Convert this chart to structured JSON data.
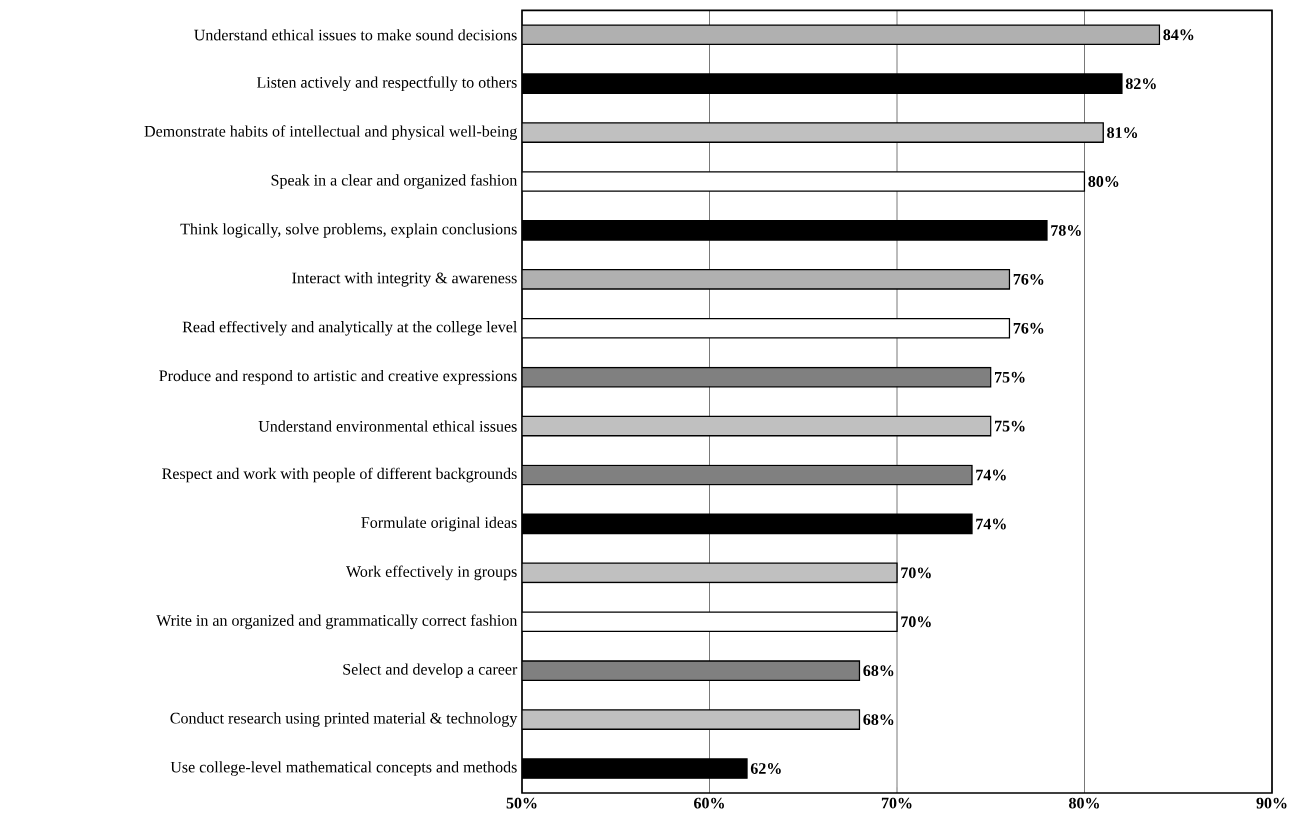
{
  "chart_data": {
    "type": "bar",
    "orientation": "horizontal",
    "categories": [
      "Understand ethical issues to make sound decisions",
      "Listen actively and respectfully to others",
      "Demonstrate habits of intellectual and physical well-being",
      "Speak in a clear and organized fashion",
      "Think logically, solve problems, explain conclusions",
      "Interact with integrity & awareness",
      "Read effectively and analytically at the college level",
      "Produce and respond to artistic and creative expressions",
      "Understand environmental ethical issues",
      "Respect and work with people of different backgrounds",
      "Formulate original ideas",
      "Work effectively in groups",
      "Write in an organized and grammatically correct fashion",
      "Select and develop a career",
      "Conduct research using printed material & technology",
      "Use college-level mathematical concepts and methods"
    ],
    "values": [
      84,
      82,
      81,
      80,
      78,
      76,
      76,
      75,
      75,
      74,
      74,
      70,
      70,
      68,
      68,
      62
    ],
    "value_labels": [
      "84%",
      "82%",
      "81%",
      "80%",
      "78%",
      "76%",
      "76%",
      "75%",
      "75%",
      "74%",
      "74%",
      "70%",
      "70%",
      "68%",
      "68%",
      "62%"
    ],
    "colors": [
      "#b0b0b0",
      "#000000",
      "#c0c0c0",
      "#ffffff",
      "#000000",
      "#b0b0b0",
      "#ffffff",
      "#808080",
      "#c0c0c0",
      "#808080",
      "#000000",
      "#c0c0c0",
      "#ffffff",
      "#808080",
      "#c0c0c0",
      "#000000"
    ],
    "xlim": [
      50,
      90
    ],
    "xticks": [
      {
        "value": 50,
        "label": "50%"
      },
      {
        "value": 60,
        "label": "60%"
      },
      {
        "value": 70,
        "label": "70%"
      },
      {
        "value": 80,
        "label": "80%"
      },
      {
        "value": 90,
        "label": "90%"
      }
    ],
    "grid": "x"
  }
}
